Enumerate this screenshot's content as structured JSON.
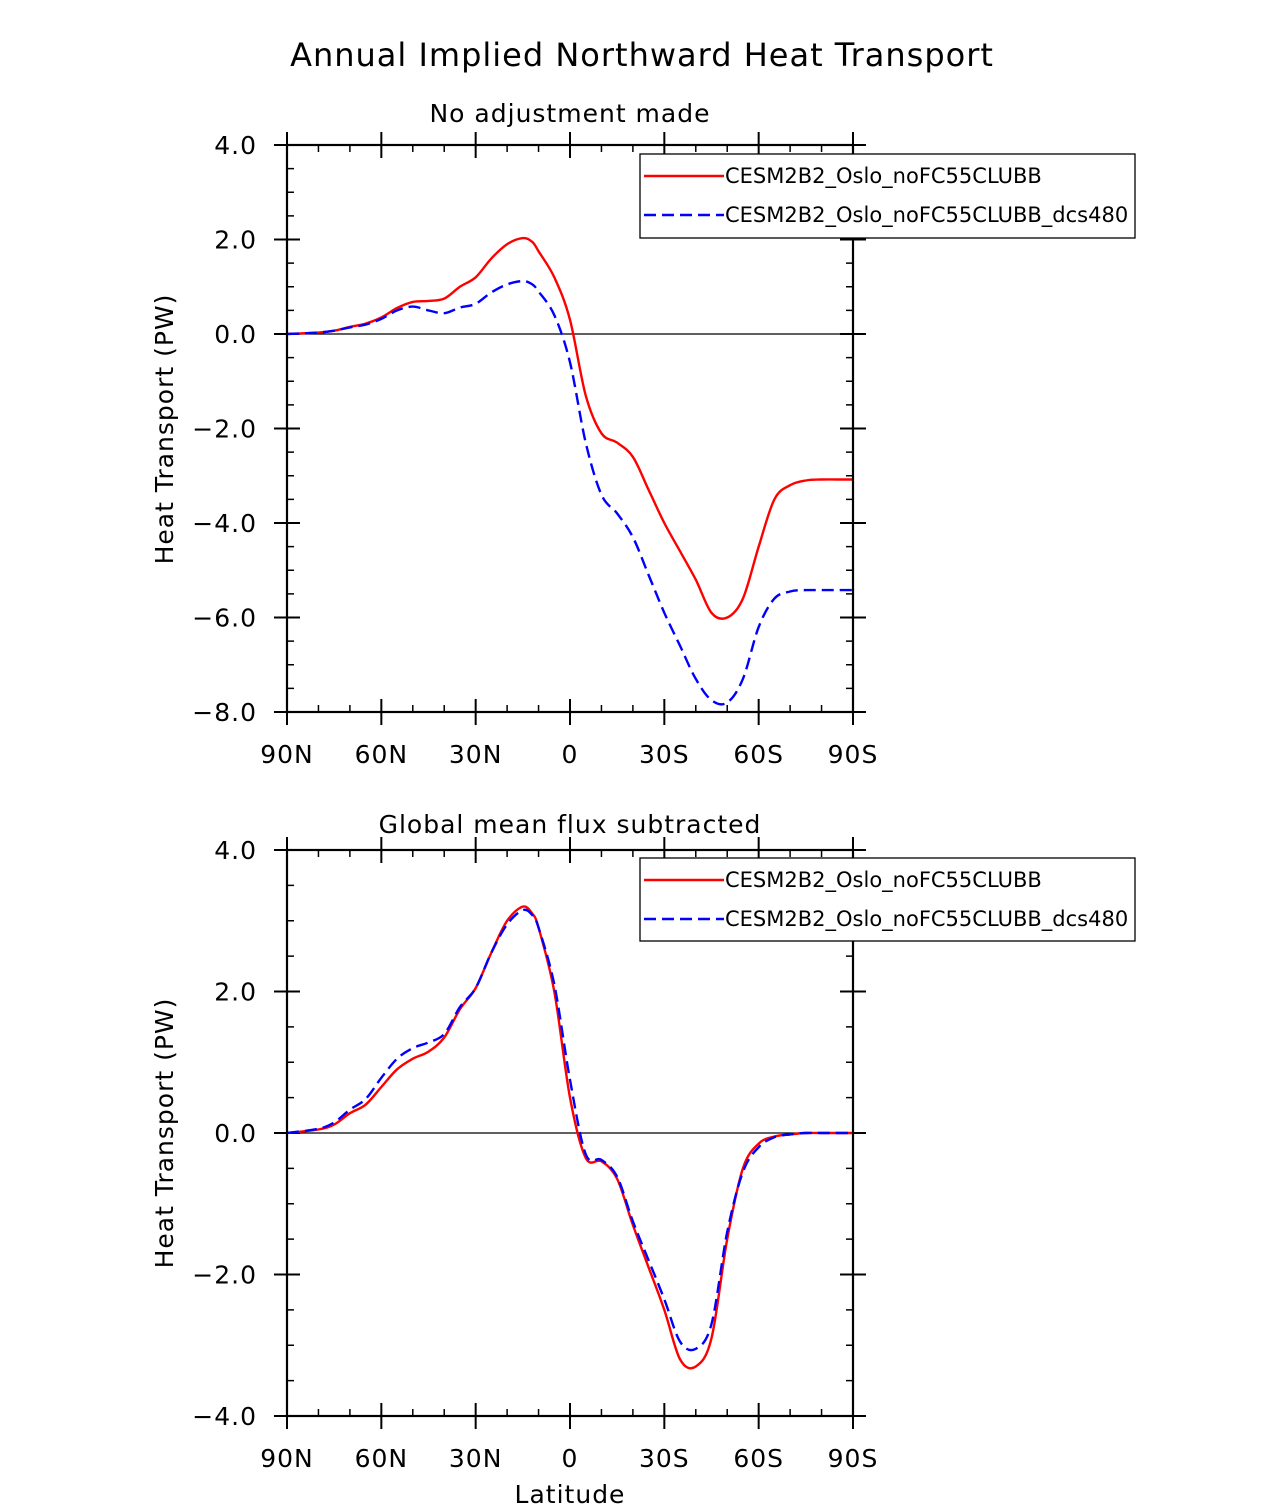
{
  "figure_title": "Annual Implied Northward Heat Transport",
  "colors": {
    "series1": "#ff0000",
    "series2": "#0000ff",
    "axis": "#000000"
  },
  "chart_data": [
    {
      "type": "line",
      "title": "No adjustment made",
      "xlabel": "",
      "ylabel": "Heat Transport (PW)",
      "xlim": [
        90,
        -90
      ],
      "ylim": [
        -8,
        4
      ],
      "yticks": [
        4,
        2,
        0,
        -2,
        -4,
        -6,
        -8
      ],
      "ytick_labels": [
        "4.0",
        "2.0",
        "0.0",
        "−2.0",
        "−4.0",
        "−6.0",
        "−8.0"
      ],
      "xticks": [
        90,
        60,
        30,
        0,
        -30,
        -60,
        -90
      ],
      "xtick_labels": [
        "90N",
        "60N",
        "30N",
        "0",
        "30S",
        "60S",
        "90S"
      ],
      "zero_line": true,
      "legend_placement": "top-right",
      "series": [
        {
          "name": "CESM2B2_Oslo_noFC55CLUBB",
          "style": "solid",
          "color": "#ff0000",
          "x": [
            90,
            80,
            75,
            70,
            65,
            60,
            55,
            50,
            45,
            40,
            35,
            30,
            25,
            20,
            15,
            12,
            10,
            5,
            0,
            -5,
            -10,
            -15,
            -20,
            -25,
            -30,
            -35,
            -40,
            -45,
            -50,
            -55,
            -60,
            -65,
            -70,
            -75,
            -80,
            -85,
            -90
          ],
          "values": [
            0,
            0.03,
            0.07,
            0.15,
            0.22,
            0.35,
            0.55,
            0.68,
            0.7,
            0.75,
            1.0,
            1.2,
            1.6,
            1.9,
            2.03,
            1.95,
            1.75,
            1.2,
            0.3,
            -1.3,
            -2.1,
            -2.3,
            -2.6,
            -3.3,
            -4.0,
            -4.6,
            -5.2,
            -5.9,
            -6.0,
            -5.6,
            -4.5,
            -3.5,
            -3.2,
            -3.1,
            -3.08,
            -3.08,
            -3.08
          ]
        },
        {
          "name": "CESM2B2_Oslo_noFC55CLUBB_dcs480",
          "style": "dashed",
          "color": "#0000ff",
          "x": [
            90,
            80,
            75,
            70,
            65,
            60,
            55,
            50,
            45,
            40,
            35,
            30,
            25,
            20,
            15,
            12,
            10,
            5,
            0,
            -5,
            -10,
            -15,
            -20,
            -25,
            -30,
            -35,
            -40,
            -45,
            -50,
            -55,
            -60,
            -65,
            -70,
            -75,
            -80,
            -85,
            -90
          ],
          "values": [
            0,
            0.03,
            0.07,
            0.14,
            0.2,
            0.32,
            0.5,
            0.58,
            0.5,
            0.44,
            0.56,
            0.64,
            0.88,
            1.05,
            1.12,
            1.05,
            0.9,
            0.4,
            -0.6,
            -2.3,
            -3.4,
            -3.8,
            -4.3,
            -5.1,
            -5.9,
            -6.6,
            -7.3,
            -7.75,
            -7.8,
            -7.3,
            -6.2,
            -5.6,
            -5.45,
            -5.42,
            -5.42,
            -5.42,
            -5.42
          ]
        }
      ]
    },
    {
      "type": "line",
      "title": "Global mean flux subtracted",
      "xlabel": "Latitude",
      "ylabel": "Heat Transport (PW)",
      "xlim": [
        90,
        -90
      ],
      "ylim": [
        -4,
        4
      ],
      "yticks": [
        4,
        2,
        0,
        -2,
        -4
      ],
      "ytick_labels": [
        "4.0",
        "2.0",
        "0.0",
        "−2.0",
        "−4.0"
      ],
      "xticks": [
        90,
        60,
        30,
        0,
        -30,
        -60,
        -90
      ],
      "xtick_labels": [
        "90N",
        "60N",
        "30N",
        "0",
        "30S",
        "60S",
        "90S"
      ],
      "zero_line": true,
      "legend_placement": "top-right",
      "series": [
        {
          "name": "CESM2B2_Oslo_noFC55CLUBB",
          "style": "solid",
          "color": "#ff0000",
          "x": [
            90,
            80,
            75,
            70,
            65,
            60,
            55,
            50,
            45,
            40,
            35,
            30,
            25,
            20,
            15,
            12,
            10,
            5,
            0,
            -5,
            -10,
            -15,
            -20,
            -25,
            -30,
            -35,
            -40,
            -45,
            -50,
            -55,
            -60,
            -65,
            -70,
            -75,
            -80,
            -85,
            -90
          ],
          "values": [
            0,
            0.05,
            0.12,
            0.28,
            0.4,
            0.65,
            0.9,
            1.05,
            1.15,
            1.35,
            1.75,
            2.05,
            2.55,
            3.0,
            3.2,
            3.1,
            2.9,
            2.0,
            0.5,
            -0.35,
            -0.4,
            -0.65,
            -1.3,
            -1.9,
            -2.5,
            -3.2,
            -3.3,
            -2.9,
            -1.5,
            -0.5,
            -0.15,
            -0.05,
            -0.02,
            0,
            0,
            0,
            0
          ]
        },
        {
          "name": "CESM2B2_Oslo_noFC55CLUBB_dcs480",
          "style": "dashed",
          "color": "#0000ff",
          "x": [
            90,
            80,
            75,
            70,
            65,
            60,
            55,
            50,
            45,
            40,
            35,
            30,
            25,
            20,
            15,
            12,
            10,
            5,
            0,
            -5,
            -10,
            -15,
            -20,
            -25,
            -30,
            -35,
            -40,
            -45,
            -50,
            -55,
            -60,
            -65,
            -70,
            -75,
            -80,
            -85,
            -90
          ],
          "values": [
            0,
            0.06,
            0.15,
            0.33,
            0.48,
            0.78,
            1.05,
            1.2,
            1.28,
            1.4,
            1.78,
            2.05,
            2.55,
            2.95,
            3.15,
            3.08,
            2.9,
            2.1,
            0.75,
            -0.3,
            -0.38,
            -0.62,
            -1.25,
            -1.8,
            -2.35,
            -2.95,
            -3.05,
            -2.7,
            -1.4,
            -0.55,
            -0.2,
            -0.06,
            -0.02,
            0,
            0,
            0,
            0
          ]
        }
      ]
    }
  ]
}
